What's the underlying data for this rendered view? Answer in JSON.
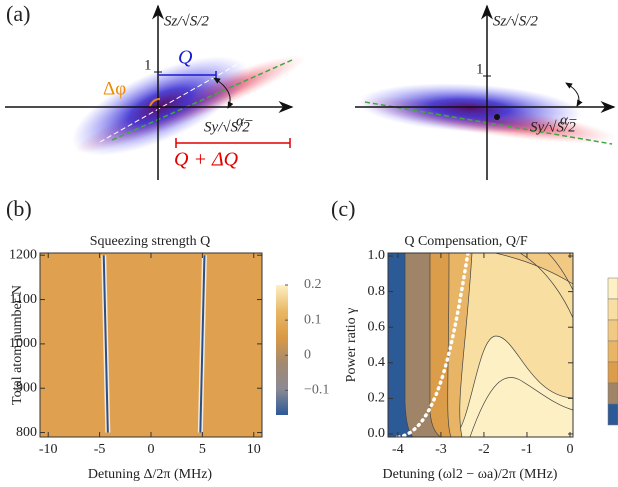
{
  "panel_a": {
    "label": "(a)",
    "left": {
      "y_axis": "Sz/√S/2",
      "tick": "1",
      "Q": "Q",
      "delta_phi": "Δφ",
      "alpha": "α−",
      "x_axis": "Sy/√S/2",
      "Q_dQ": "Q + ΔQ"
    },
    "right": {
      "y_axis": "Sz/√S/2",
      "tick": "1",
      "alpha": "α−",
      "x_axis": "Sy/√S/2"
    }
  },
  "chart_data": [
    {
      "type": "heatmap",
      "label": "(b)",
      "title": "Squeezing strength Q",
      "xlabel": "Detuning Δ/2π (MHz)",
      "ylabel": "Total atom number N",
      "xlim": [
        -10.8,
        10.8
      ],
      "xticks": [
        -10,
        -5,
        0,
        5,
        10
      ],
      "ylim": [
        790,
        1205
      ],
      "yticks": [
        800,
        900,
        1000,
        1100,
        1200
      ],
      "background_color": "#dfa14f",
      "resonance_lines": [
        {
          "x": [
            -4.6,
            -4.2
          ],
          "y": [
            1200,
            800
          ]
        },
        {
          "x": [
            5.2,
            4.8
          ],
          "y": [
            1200,
            800
          ]
        }
      ],
      "clim": [
        -0.17,
        0.2
      ],
      "colormap": [
        "#2c5a97",
        "#8b8a94",
        "#a38a70",
        "#d99a45",
        "#e9b865",
        "#fdf0c4"
      ],
      "colorbar_ticks": [
        0.2,
        0.1,
        0,
        {
          "value": -0.1,
          "label": "−0.1"
        }
      ]
    },
    {
      "type": "contour",
      "label": "(c)",
      "title": "Q Compensation, Q/F",
      "xlabel": "Detuning (ωl2 − ωa)/2π (MHz)",
      "ylabel": "Power ratio γ",
      "xlim": [
        -4.23,
        0.07
      ],
      "xticks": [
        -4,
        -3,
        -2,
        -1,
        0
      ],
      "ylim": [
        -0.017,
        1.017
      ],
      "yticks": [
        {
          "value": 0,
          "label": "0.0"
        },
        0.2,
        0.4,
        0.6,
        0.8,
        {
          "value": 1,
          "label": "1.0"
        }
      ],
      "colorbar_colors": [
        "#fdf0c4",
        "#f8dea0",
        "#f1c983",
        "#e8b466",
        "#dc9d4a",
        "#a08468",
        "#2c5a97"
      ]
    }
  ]
}
